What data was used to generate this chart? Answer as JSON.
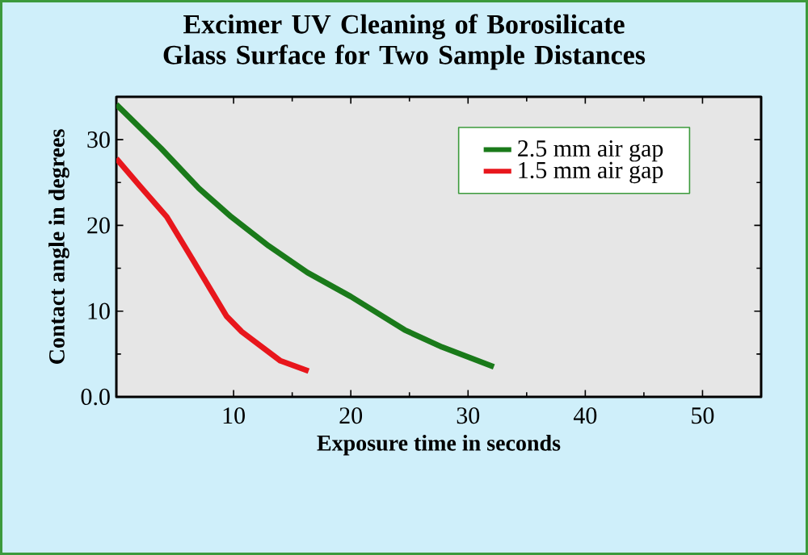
{
  "chart_data": {
    "type": "line",
    "title": "Excimer UV Cleaning of Borosilicate Glass Surface for Two Sample Distances",
    "xlabel": "Exposure time in seconds",
    "ylabel": "Contact angle in degrees",
    "xlim": [
      0,
      55
    ],
    "ylim": [
      0,
      35
    ],
    "xticks": [
      10,
      20,
      30,
      40,
      50
    ],
    "yticks": [
      {
        "value": 0,
        "label": "0.0"
      },
      10,
      20,
      30
    ],
    "legend": "top right",
    "grid": false,
    "marker": "none",
    "line_style": "solid",
    "series": [
      {
        "name": "2.5 mm air gap",
        "color": "#1a7a1a",
        "x": [
          0,
          3.8,
          7.05,
          9.8,
          13.0,
          16.3,
          20,
          24.6,
          27.8,
          32.2
        ],
        "values": [
          34.1,
          29.0,
          24.3,
          21.0,
          17.6,
          14.5,
          11.7,
          7.8,
          5.8,
          3.5
        ]
      },
      {
        "name": "1.5 mm air gap",
        "color": "#e8161c",
        "x": [
          0,
          2,
          4.3,
          6.6,
          9.4,
          10.7,
          14,
          16.4
        ],
        "values": [
          27.8,
          24.6,
          21.0,
          15.8,
          9.4,
          7.6,
          4.2,
          3.0
        ]
      }
    ]
  }
}
